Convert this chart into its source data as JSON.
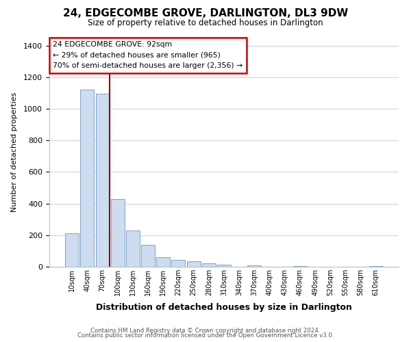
{
  "title": "24, EDGECOMBE GROVE, DARLINGTON, DL3 9DW",
  "subtitle": "Size of property relative to detached houses in Darlington",
  "xlabel": "Distribution of detached houses by size in Darlington",
  "ylabel": "Number of detached properties",
  "bar_labels": [
    "10sqm",
    "40sqm",
    "70sqm",
    "100sqm",
    "130sqm",
    "160sqm",
    "190sqm",
    "220sqm",
    "250sqm",
    "280sqm",
    "310sqm",
    "340sqm",
    "370sqm",
    "400sqm",
    "430sqm",
    "460sqm",
    "490sqm",
    "520sqm",
    "550sqm",
    "580sqm",
    "610sqm"
  ],
  "bar_values": [
    210,
    1120,
    1095,
    430,
    230,
    140,
    60,
    45,
    35,
    20,
    12,
    0,
    8,
    0,
    0,
    5,
    0,
    0,
    0,
    0,
    5
  ],
  "bar_color": "#cddcee",
  "bar_edge_color": "#7ba3cc",
  "vline_color": "#880000",
  "ylim": [
    0,
    1450
  ],
  "yticks": [
    0,
    200,
    400,
    600,
    800,
    1000,
    1200,
    1400
  ],
  "annotation_title": "24 EDGECOMBE GROVE: 92sqm",
  "annotation_line1": "← 29% of detached houses are smaller (965)",
  "annotation_line2": "70% of semi-detached houses are larger (2,356) →",
  "annotation_box_color": "#ffffff",
  "annotation_box_edge": "#cc0000",
  "footer1": "Contains HM Land Registry data © Crown copyright and database right 2024.",
  "footer2": "Contains public sector information licensed under the Open Government Licence v3.0.",
  "background_color": "#ffffff",
  "grid_color": "#c8d8e8"
}
